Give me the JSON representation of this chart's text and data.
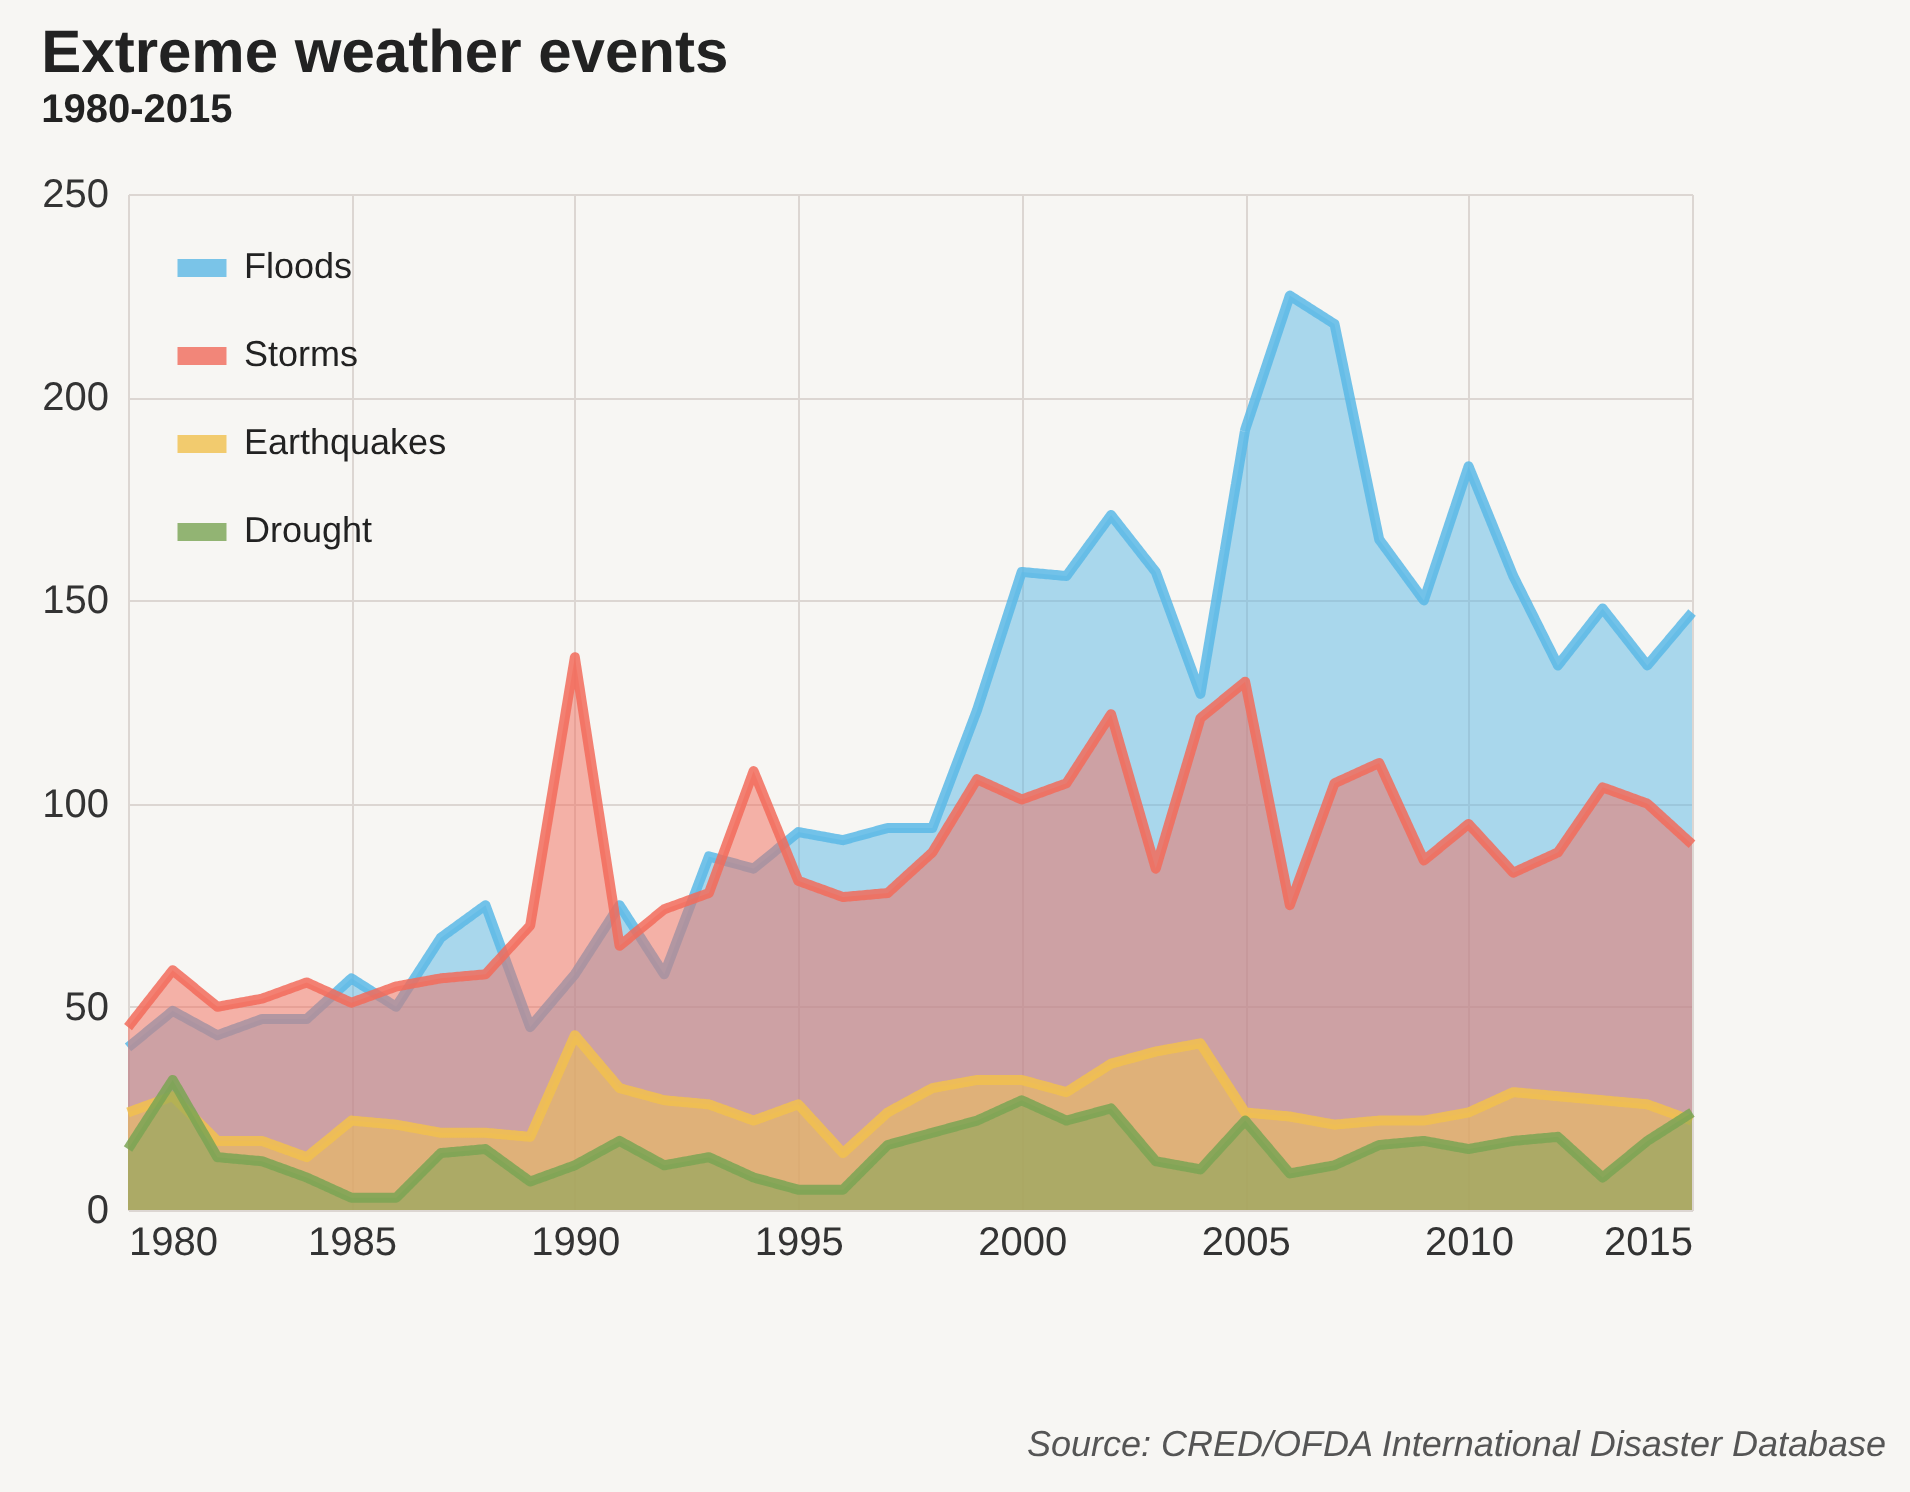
{
  "chart_data": {
    "type": "area",
    "title": "Extreme weather events",
    "subtitle": "1980-2015",
    "x": [
      1980,
      1981,
      1982,
      1983,
      1984,
      1985,
      1986,
      1987,
      1988,
      1989,
      1990,
      1991,
      1992,
      1993,
      1994,
      1995,
      1996,
      1997,
      1998,
      1999,
      2000,
      2001,
      2002,
      2003,
      2004,
      2005,
      2006,
      2007,
      2008,
      2009,
      2010,
      2011,
      2012,
      2013,
      2014,
      2015
    ],
    "series": [
      {
        "name": "Floods",
        "color": "#5bb8e6",
        "values": [
          40,
          49,
          43,
          47,
          47,
          57,
          50,
          67,
          75,
          45,
          58,
          75,
          58,
          87,
          84,
          93,
          91,
          94,
          94,
          123,
          157,
          156,
          171,
          157,
          127,
          192,
          225,
          218,
          165,
          150,
          183,
          156,
          134,
          148,
          134,
          147
        ]
      },
      {
        "name": "Storms",
        "color": "#f26b5b",
        "values": [
          45,
          59,
          50,
          52,
          56,
          51,
          55,
          57,
          58,
          70,
          136,
          65,
          74,
          78,
          108,
          81,
          77,
          78,
          88,
          106,
          101,
          105,
          122,
          84,
          121,
          130,
          75,
          105,
          110,
          86,
          95,
          83,
          88,
          104,
          100,
          90
        ]
      },
      {
        "name": "Earthquakes",
        "color": "#f2c14e",
        "values": [
          24,
          28,
          17,
          17,
          13,
          22,
          21,
          19,
          19,
          18,
          43,
          30,
          27,
          26,
          22,
          26,
          14,
          24,
          30,
          32,
          32,
          29,
          36,
          39,
          41,
          24,
          23,
          21,
          22,
          22,
          24,
          29,
          28,
          27,
          26,
          22
        ]
      },
      {
        "name": "Drought",
        "color": "#7aa454",
        "values": [
          15,
          32,
          13,
          12,
          8,
          3,
          3,
          14,
          15,
          7,
          11,
          17,
          11,
          13,
          8,
          5,
          5,
          16,
          19,
          22,
          27,
          22,
          25,
          12,
          10,
          22,
          9,
          11,
          16,
          17,
          15,
          17,
          18,
          8,
          17,
          24
        ]
      }
    ],
    "xlim": [
      1980,
      2015
    ],
    "xticks": [
      1980,
      1985,
      1990,
      1995,
      2000,
      2005,
      2010,
      2015
    ],
    "ylim": [
      0,
      250
    ],
    "yticks": [
      0,
      50,
      100,
      150,
      200,
      250
    ],
    "grid": true,
    "legend": "top left",
    "line_style": "solid",
    "annotations": [
      "Source: CRED/OFDA International Disaster Database"
    ]
  }
}
